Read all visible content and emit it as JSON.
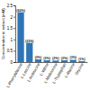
{
  "chart_data": {
    "type": "bar",
    "y_label": "Concentration in extract (mM)",
    "categories": [
      "L-Phenylalanine",
      "L-Leucine",
      "L-Isoleucine",
      "L-Valine",
      "L-Methionine",
      "L-Tryptophan",
      "L-Alanine",
      "Glycine"
    ],
    "values": [
      2.2,
      0.85,
      0.12,
      0.08,
      0.07,
      0.08,
      0.1,
      0.04
    ],
    "annotations": [
      "(60%)",
      "(23%)",
      "(3%)",
      "(2%)",
      "(2%)",
      "(2%)",
      "(3%)",
      "(1%)"
    ],
    "color": "#2e75b6",
    "ylim": [
      0,
      2.5
    ],
    "yticks": [
      0,
      0.5,
      1,
      1.5,
      2,
      2.5
    ],
    "grid": false
  }
}
